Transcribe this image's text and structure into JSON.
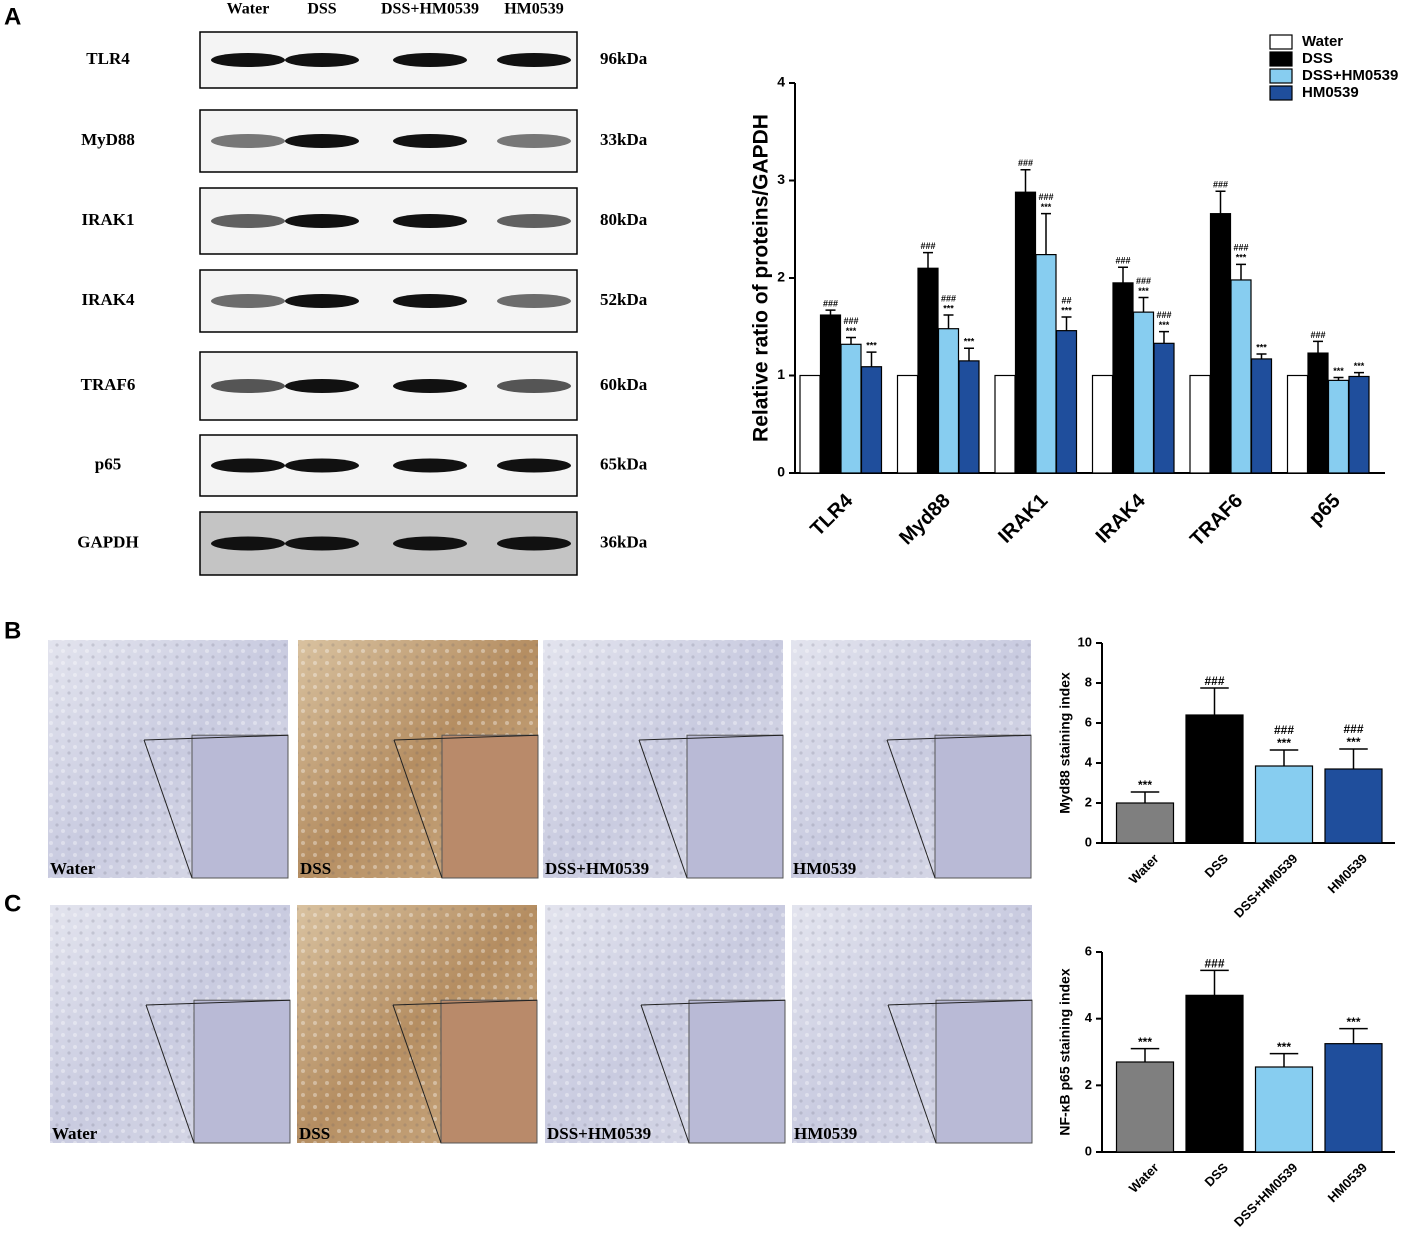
{
  "panel_labels": [
    "A",
    "B",
    "C"
  ],
  "blot": {
    "lanes": [
      "Water",
      "DSS",
      "DSS+HM0539",
      "HM0539"
    ],
    "rows": [
      {
        "protein": "TLR4",
        "size": "96kDa"
      },
      {
        "protein": "MyD88",
        "size": "33kDa"
      },
      {
        "protein": "IRAK1",
        "size": "80kDa"
      },
      {
        "protein": "IRAK4",
        "size": "52kDa"
      },
      {
        "protein": "TRAF6",
        "size": "60kDa"
      },
      {
        "protein": "p65",
        "size": "65kDa"
      },
      {
        "protein": "GAPDH",
        "size": "36kDa"
      }
    ]
  },
  "micrograph_rows": [
    [
      "Water",
      "DSS",
      "DSS+HM0539",
      "HM0539"
    ],
    [
      "Water",
      "DSS",
      "DSS+HM0539",
      "HM0539"
    ]
  ],
  "chart_data": [
    {
      "type": "bar",
      "y_label": "Relative ratio of proteins/GAPDH",
      "categories": [
        "TLR4",
        "Myd88",
        "IRAK1",
        "IRAK4",
        "TRAF6",
        "p65"
      ],
      "ylim": [
        0,
        4
      ],
      "yticks": [
        0,
        1,
        2,
        3,
        4
      ],
      "legend": "top-right",
      "series": [
        {
          "name": "Water",
          "color": "#ffffff",
          "values": [
            1,
            1,
            1,
            1,
            1,
            1
          ]
        },
        {
          "name": "DSS",
          "color": "#000000",
          "values": [
            1.62,
            2.1,
            2.88,
            1.95,
            2.66,
            1.23
          ],
          "errors": [
            0.05,
            0.16,
            0.23,
            0.16,
            0.23,
            0.12
          ],
          "labels": [
            [
              "###"
            ],
            [
              "###"
            ],
            [
              "###"
            ],
            [
              "###"
            ],
            [
              "###"
            ],
            [
              "###"
            ]
          ]
        },
        {
          "name": "DSS+HM0539",
          "color": "#87cdf0",
          "values": [
            1.32,
            1.48,
            2.24,
            1.65,
            1.98,
            0.95
          ],
          "errors": [
            0.07,
            0.14,
            0.42,
            0.15,
            0.16,
            0.03
          ],
          "labels": [
            [
              "###",
              "***"
            ],
            [
              "###",
              "***"
            ],
            [
              "###",
              "***"
            ],
            [
              "###",
              "***"
            ],
            [
              "###",
              "***"
            ],
            [
              "***"
            ]
          ]
        },
        {
          "name": "HM0539",
          "color": "#1f4e9c",
          "values": [
            1.09,
            1.15,
            1.46,
            1.33,
            1.17,
            0.99
          ],
          "errors": [
            0.15,
            0.13,
            0.14,
            0.12,
            0.05,
            0.04
          ],
          "labels": [
            [
              "***"
            ],
            [
              "***"
            ],
            [
              "##",
              "***"
            ],
            [
              "###",
              "***"
            ],
            [
              "***"
            ],
            [
              "***"
            ]
          ]
        }
      ]
    },
    {
      "type": "bar",
      "y_label": "Myd88 staining index",
      "categories": [
        "Water",
        "DSS",
        "DSS+HM0539",
        "HM0539"
      ],
      "values": [
        2.0,
        6.4,
        3.85,
        3.7
      ],
      "errors": [
        0.55,
        1.35,
        0.8,
        1.0
      ],
      "colors": [
        "#7f7f7f",
        "#000000",
        "#87cdf0",
        "#1f4e9c"
      ],
      "labels": [
        [
          "***"
        ],
        [
          "###"
        ],
        [
          "###",
          "***"
        ],
        [
          "###",
          "***"
        ]
      ],
      "ylim": [
        0,
        10
      ],
      "yticks": [
        0,
        2,
        4,
        6,
        8,
        10
      ]
    },
    {
      "type": "bar",
      "y_label": "NF-κB p65 staining index",
      "categories": [
        "Water",
        "DSS",
        "DSS+HM0539",
        "HM0539"
      ],
      "values": [
        2.7,
        4.7,
        2.55,
        3.25
      ],
      "errors": [
        0.4,
        0.75,
        0.4,
        0.45
      ],
      "colors": [
        "#7f7f7f",
        "#000000",
        "#87cdf0",
        "#1f4e9c"
      ],
      "labels": [
        [
          "***"
        ],
        [
          "###"
        ],
        [
          "***"
        ],
        [
          "***"
        ]
      ],
      "ylim": [
        0,
        6
      ],
      "yticks": [
        0,
        2,
        4,
        6
      ]
    }
  ]
}
